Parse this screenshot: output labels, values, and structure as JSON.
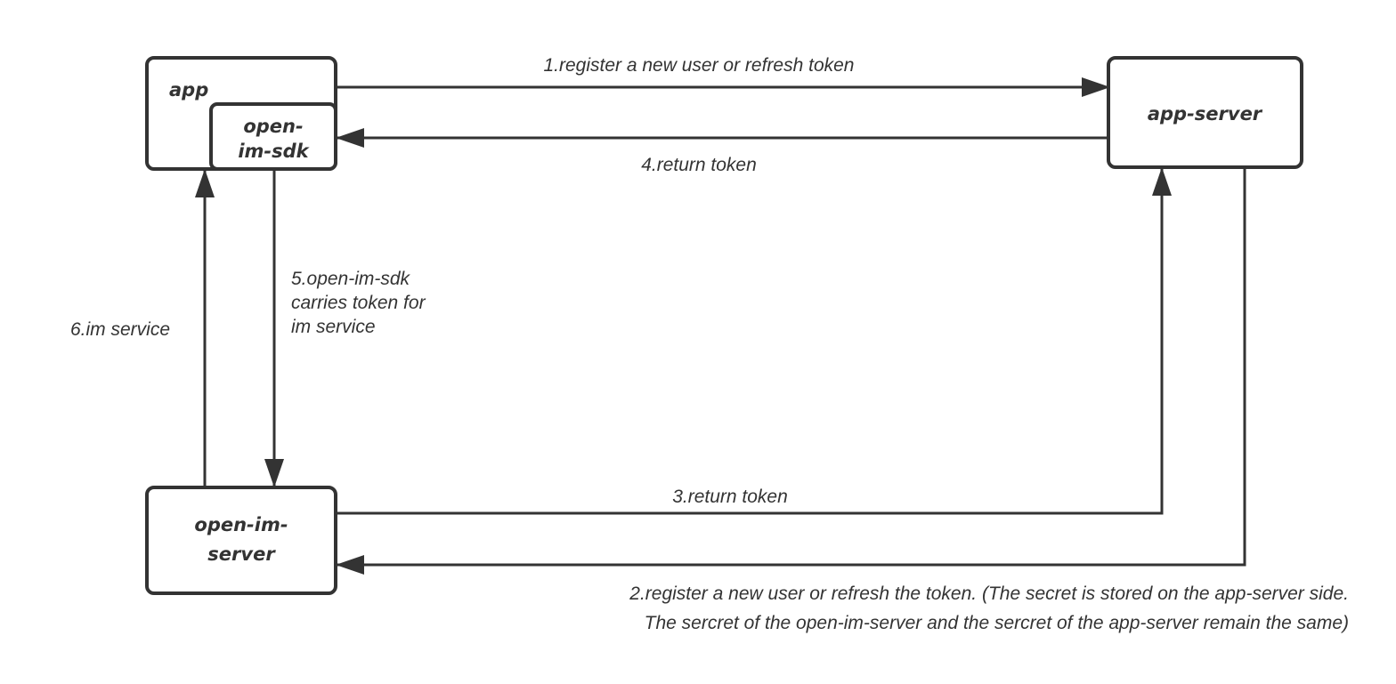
{
  "nodes": {
    "app": "app",
    "sdk": [
      "open-",
      "im-sdk"
    ],
    "app_server": "app-server",
    "im_server": [
      "open-im-",
      "server"
    ]
  },
  "edges": {
    "e1": "1.register a new user or refresh token",
    "e2": [
      "2.register a new user or refresh the token. (The secret is stored on the app-server side.",
      "The sercret of the open-im-server and the sercret of the app-server remain the same)"
    ],
    "e3": "3.return token",
    "e4": "4.return token",
    "e5": [
      "5.open-im-sdk",
      "carries token for",
      "im service"
    ],
    "e6": "6.im service"
  },
  "colors": {
    "stroke": "#333333",
    "background": "#ffffff"
  }
}
